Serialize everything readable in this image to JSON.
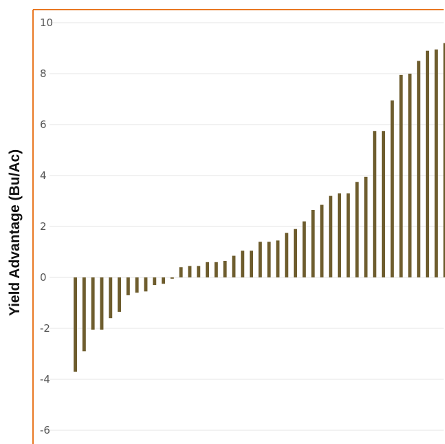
{
  "chart_data": {
    "type": "bar",
    "title": "",
    "xlabel": "",
    "ylabel": "Yield Advantage (Bu/Ac)",
    "ylim": [
      -6,
      10
    ],
    "yticks": [
      10,
      8,
      6,
      4,
      2,
      0,
      -2,
      -4,
      -6
    ],
    "ytick_labels": [
      "10",
      "8",
      "6",
      "4",
      "2",
      "0",
      "-2",
      "-4",
      "-6"
    ],
    "grid": true,
    "values": [
      -3.7,
      -2.9,
      -2.05,
      -2.05,
      -1.6,
      -1.35,
      -0.7,
      -0.6,
      -0.55,
      -0.3,
      -0.25,
      -0.05,
      0.4,
      0.45,
      0.45,
      0.6,
      0.6,
      0.65,
      0.85,
      1.05,
      1.05,
      1.4,
      1.4,
      1.45,
      1.75,
      1.9,
      2.2,
      2.65,
      2.85,
      3.2,
      3.3,
      3.3,
      3.75,
      3.95,
      5.75,
      5.75,
      6.95,
      7.95,
      8.0,
      8.5,
      8.9,
      8.95,
      9.2
    ],
    "colors": {
      "bar": "#6e5d2e",
      "axis": "#e87722",
      "grid": "#e6e6e6"
    }
  }
}
